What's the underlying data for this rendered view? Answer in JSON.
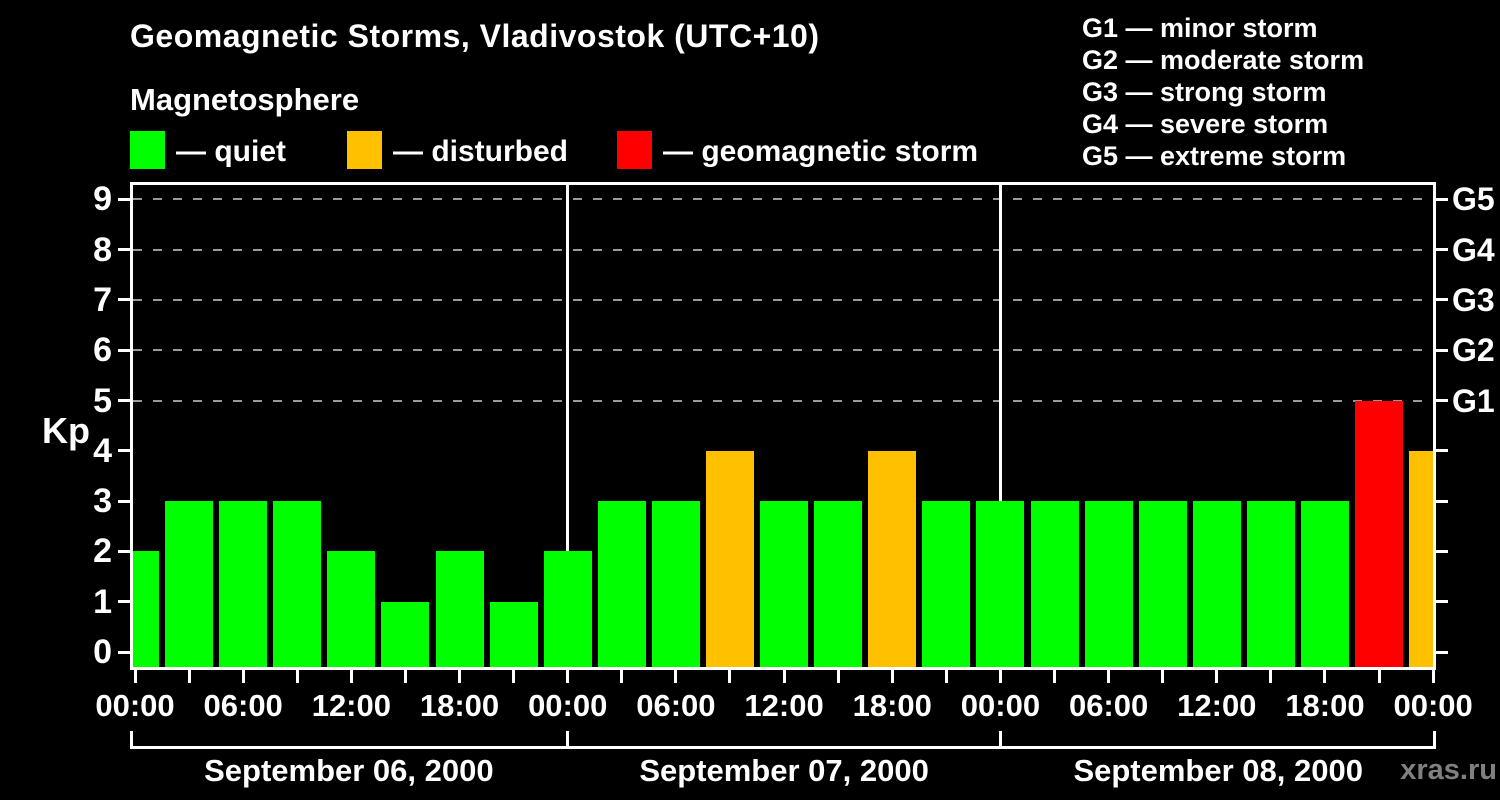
{
  "title": "Geomagnetic Storms, Vladivostok (UTC+10)",
  "subtitle": "Magnetosphere",
  "watermark": "xras.ru",
  "colors": {
    "quiet": "#00ff00",
    "disturbed": "#ffc000",
    "storm": "#ff0000",
    "background": "#000000",
    "axis": "#ffffff",
    "grid": "#999999",
    "watermark": "#808080"
  },
  "legend": {
    "items": [
      {
        "status": "quiet",
        "label": "— quiet"
      },
      {
        "status": "disturbed",
        "label": "— disturbed"
      },
      {
        "status": "storm",
        "label": "— geomagnetic storm"
      }
    ]
  },
  "g_scale_legend": {
    "lines": [
      "G1 — minor storm",
      "G2 — moderate storm",
      "G3 — strong storm",
      "G4 — severe storm",
      "G5 — extreme storm"
    ]
  },
  "chart_data": {
    "type": "bar",
    "title": "Geomagnetic Storms, Vladivostok (UTC+10)",
    "ylabel": "Kp",
    "ylim": [
      0,
      9
    ],
    "y_ticks": [
      0,
      1,
      2,
      3,
      4,
      5,
      6,
      7,
      8,
      9
    ],
    "grid_levels": [
      5,
      6,
      7,
      8,
      9
    ],
    "right_axis_labels": [
      {
        "kp": 5,
        "label": "G1"
      },
      {
        "kp": 6,
        "label": "G2"
      },
      {
        "kp": 7,
        "label": "G3"
      },
      {
        "kp": 8,
        "label": "G4"
      },
      {
        "kp": 9,
        "label": "G5"
      }
    ],
    "x_tick_interval_hours": 3,
    "x_label_interval_hours": 6,
    "x_tick_labels": [
      "00:00",
      "06:00",
      "12:00",
      "18:00",
      "00:00",
      "06:00",
      "12:00",
      "18:00",
      "00:00",
      "06:00",
      "12:00",
      "18:00",
      "00:00"
    ],
    "day_boundaries_hours": [
      0,
      24,
      48,
      72
    ],
    "days": [
      {
        "label": "September 06, 2000"
      },
      {
        "label": "September 07, 2000"
      },
      {
        "label": "September 08, 2000"
      }
    ],
    "bars": [
      {
        "hour": 0,
        "kp": 2,
        "status": "quiet"
      },
      {
        "hour": 3,
        "kp": 3,
        "status": "quiet"
      },
      {
        "hour": 6,
        "kp": 3,
        "status": "quiet"
      },
      {
        "hour": 9,
        "kp": 3,
        "status": "quiet"
      },
      {
        "hour": 12,
        "kp": 2,
        "status": "quiet"
      },
      {
        "hour": 15,
        "kp": 1,
        "status": "quiet"
      },
      {
        "hour": 18,
        "kp": 2,
        "status": "quiet"
      },
      {
        "hour": 21,
        "kp": 1,
        "status": "quiet"
      },
      {
        "hour": 24,
        "kp": 2,
        "status": "quiet"
      },
      {
        "hour": 27,
        "kp": 3,
        "status": "quiet"
      },
      {
        "hour": 30,
        "kp": 3,
        "status": "quiet"
      },
      {
        "hour": 33,
        "kp": 4,
        "status": "disturbed"
      },
      {
        "hour": 36,
        "kp": 3,
        "status": "quiet"
      },
      {
        "hour": 39,
        "kp": 3,
        "status": "quiet"
      },
      {
        "hour": 42,
        "kp": 4,
        "status": "disturbed"
      },
      {
        "hour": 45,
        "kp": 3,
        "status": "quiet"
      },
      {
        "hour": 48,
        "kp": 3,
        "status": "quiet"
      },
      {
        "hour": 51,
        "kp": 3,
        "status": "quiet"
      },
      {
        "hour": 54,
        "kp": 3,
        "status": "quiet"
      },
      {
        "hour": 57,
        "kp": 3,
        "status": "quiet"
      },
      {
        "hour": 60,
        "kp": 3,
        "status": "quiet"
      },
      {
        "hour": 63,
        "kp": 3,
        "status": "quiet"
      },
      {
        "hour": 66,
        "kp": 3,
        "status": "quiet"
      },
      {
        "hour": 69,
        "kp": 5,
        "status": "storm"
      },
      {
        "hour": 72,
        "kp": 4,
        "status": "disturbed"
      }
    ]
  }
}
